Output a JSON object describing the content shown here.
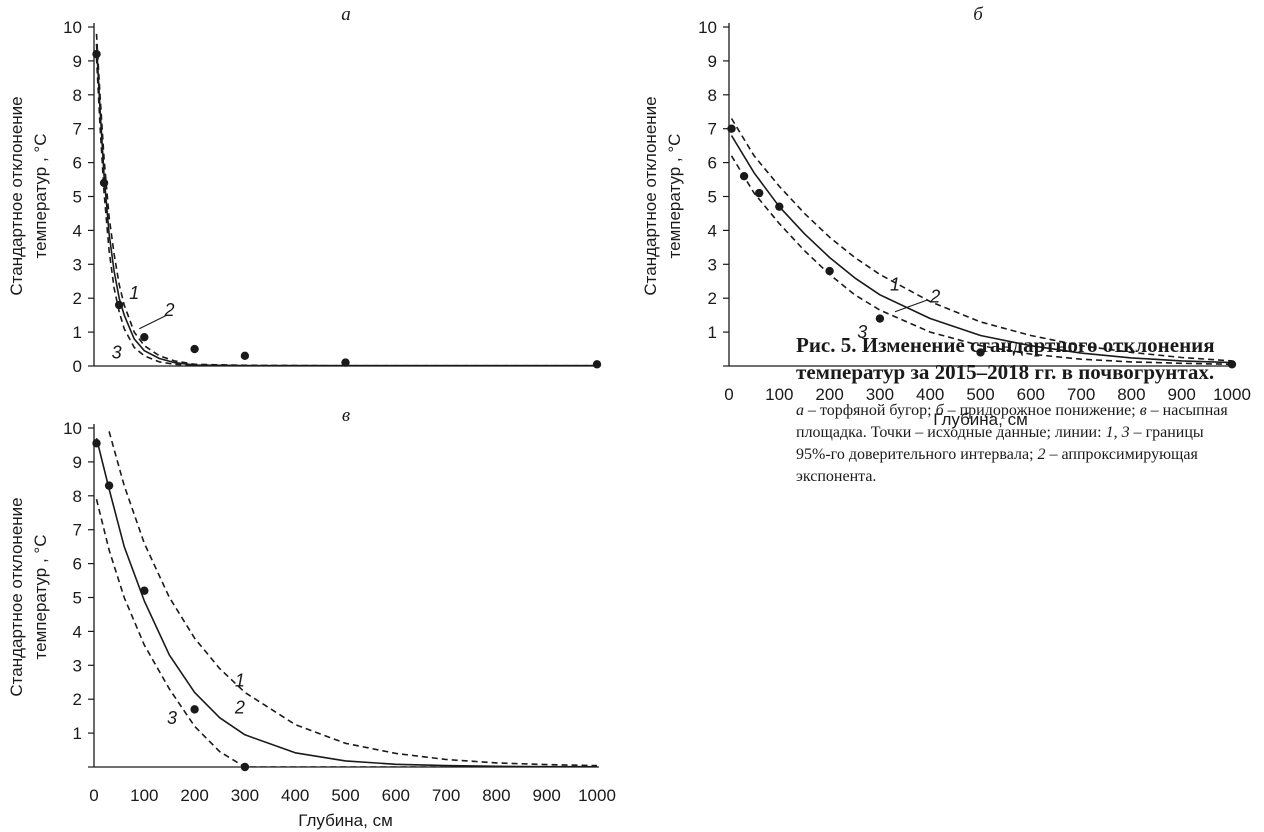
{
  "chart_data": [
    {
      "id": "a",
      "type": "scatter",
      "panel_label": "а",
      "title": "",
      "xlabel": "",
      "ylabel": [
        "Стандартное отклонение",
        "температур , °C"
      ],
      "xlim": [
        0,
        1000
      ],
      "ylim": [
        0,
        10
      ],
      "yticks": [
        "0",
        "1",
        "2",
        "3",
        "4",
        "5",
        "6",
        "7",
        "8",
        "9",
        "10"
      ],
      "xticks": [],
      "points": {
        "x": [
          5,
          20,
          50,
          100,
          200,
          300,
          500,
          1000
        ],
        "y": [
          9.2,
          5.4,
          1.8,
          0.85,
          0.5,
          0.3,
          0.1,
          0.05
        ]
      },
      "curves": [
        {
          "label": "1",
          "style": "dashed",
          "x": [
            5,
            12,
            20,
            30,
            40,
            50,
            60,
            80,
            100,
            130,
            160,
            200,
            300,
            500,
            1000
          ],
          "y": [
            9.8,
            8.0,
            6.1,
            4.4,
            3.3,
            2.4,
            1.8,
            1.0,
            0.6,
            0.3,
            0.15,
            0.05,
            0.02,
            0.01,
            0.01
          ]
        },
        {
          "label": "2",
          "style": "solid",
          "x": [
            5,
            12,
            20,
            30,
            40,
            50,
            60,
            80,
            100,
            130,
            160,
            200,
            300,
            500,
            1000
          ],
          "y": [
            9.5,
            7.6,
            5.6,
            3.9,
            2.8,
            2.0,
            1.5,
            0.8,
            0.45,
            0.22,
            0.1,
            0.03,
            0.01,
            0.01,
            0.01
          ]
        },
        {
          "label": "3",
          "style": "dashed",
          "x": [
            5,
            12,
            20,
            30,
            40,
            50,
            60,
            80,
            100,
            130,
            160,
            200,
            300,
            500,
            1000
          ],
          "y": [
            9.1,
            7.1,
            5.1,
            3.4,
            2.3,
            1.6,
            1.1,
            0.55,
            0.3,
            0.12,
            0.05,
            0.02,
            0.01,
            0.01,
            0.01
          ]
        }
      ],
      "curve_labels": [
        {
          "text": "1",
          "x": 80,
          "y": 2.15
        },
        {
          "text": "2",
          "x": 150,
          "y": 1.65
        },
        {
          "text": "3",
          "x": 45,
          "y": 0.4
        }
      ],
      "curve_pointer": {
        "curve": "2",
        "from": [
          145,
          1.5
        ],
        "to": [
          90,
          1.1
        ]
      }
    },
    {
      "id": "b",
      "type": "scatter",
      "panel_label": "б",
      "title": "",
      "xlabel": "Глубина, см",
      "ylabel": [
        "Стандартное отклонение",
        "температур , °C"
      ],
      "xlim": [
        0,
        1000
      ],
      "ylim": [
        0,
        10
      ],
      "yticks": [
        "",
        "1",
        "2",
        "3",
        "4",
        "5",
        "6",
        "7",
        "8",
        "9",
        "10"
      ],
      "xticks": [
        "0",
        "100",
        "200",
        "300",
        "400",
        "500",
        "600",
        "700",
        "800",
        "900",
        "1000"
      ],
      "points": {
        "x": [
          5,
          30,
          60,
          100,
          200,
          300,
          500,
          1000
        ],
        "y": [
          7.0,
          5.6,
          5.1,
          4.7,
          2.8,
          1.4,
          0.4,
          0.05
        ]
      },
      "curves": [
        {
          "label": "1",
          "style": "dashed",
          "x": [
            5,
            50,
            100,
            150,
            200,
            250,
            300,
            400,
            500,
            600,
            700,
            800,
            900,
            1000
          ],
          "y": [
            7.3,
            6.2,
            5.3,
            4.5,
            3.8,
            3.2,
            2.7,
            1.9,
            1.3,
            0.9,
            0.6,
            0.4,
            0.25,
            0.15
          ]
        },
        {
          "label": "2",
          "style": "solid",
          "x": [
            5,
            50,
            100,
            150,
            200,
            250,
            300,
            400,
            500,
            600,
            700,
            800,
            900,
            1000
          ],
          "y": [
            6.8,
            5.7,
            4.7,
            3.9,
            3.2,
            2.6,
            2.1,
            1.4,
            0.9,
            0.6,
            0.38,
            0.24,
            0.15,
            0.1
          ]
        },
        {
          "label": "3",
          "style": "dashed",
          "x": [
            5,
            50,
            100,
            150,
            200,
            250,
            300,
            400,
            500,
            600,
            700,
            800,
            900,
            1000
          ],
          "y": [
            6.2,
            5.1,
            4.2,
            3.4,
            2.7,
            2.1,
            1.65,
            1.0,
            0.6,
            0.35,
            0.2,
            0.12,
            0.08,
            0.05
          ]
        }
      ],
      "curve_labels": [
        {
          "text": "1",
          "x": 330,
          "y": 2.4
        },
        {
          "text": "2",
          "x": 410,
          "y": 2.05
        },
        {
          "text": "3",
          "x": 265,
          "y": 1.0
        }
      ],
      "curve_pointer": {
        "curve": "2",
        "from": [
          395,
          1.95
        ],
        "to": [
          330,
          1.6
        ]
      }
    },
    {
      "id": "v",
      "type": "scatter",
      "panel_label": "в",
      "title": "",
      "xlabel": "Глубина, см",
      "ylabel": [
        "Стандартное отклонение",
        "температур , °C"
      ],
      "xlim": [
        0,
        1000
      ],
      "ylim": [
        0,
        10
      ],
      "yticks": [
        "",
        "1",
        "2",
        "3",
        "4",
        "5",
        "6",
        "7",
        "8",
        "9",
        "10"
      ],
      "xticks": [
        "0",
        "100",
        "200",
        "300",
        "400",
        "500",
        "600",
        "700",
        "800",
        "900",
        "1000"
      ],
      "points": {
        "x": [
          5,
          30,
          100,
          200,
          300
        ],
        "y": [
          9.55,
          8.3,
          5.2,
          1.7,
          0.0
        ]
      },
      "curves": [
        {
          "label": "1",
          "style": "dashed",
          "x": [
            30,
            60,
            100,
            150,
            200,
            250,
            300,
            400,
            500,
            600,
            700,
            800,
            900,
            1000
          ],
          "y": [
            9.9,
            8.3,
            6.6,
            5.0,
            3.8,
            2.9,
            2.2,
            1.25,
            0.7,
            0.4,
            0.22,
            0.12,
            0.07,
            0.04
          ]
        },
        {
          "label": "2",
          "style": "solid",
          "x": [
            5,
            30,
            60,
            100,
            150,
            200,
            250,
            300,
            400,
            500,
            600,
            700,
            800,
            900,
            1000
          ],
          "y": [
            9.7,
            8.2,
            6.5,
            4.9,
            3.3,
            2.2,
            1.45,
            0.95,
            0.42,
            0.18,
            0.08,
            0.04,
            0.02,
            0.01,
            0.01
          ]
        },
        {
          "label": "3",
          "style": "dashed",
          "x": [
            5,
            30,
            60,
            100,
            150,
            200,
            250,
            300,
            400,
            500,
            1000
          ],
          "y": [
            7.9,
            6.4,
            5.0,
            3.6,
            2.3,
            1.2,
            0.45,
            0.0,
            0.0,
            0.0,
            0.0
          ]
        }
      ],
      "curve_labels": [
        {
          "text": "1",
          "x": 290,
          "y": 2.55
        },
        {
          "text": "2",
          "x": 290,
          "y": 1.75
        },
        {
          "text": "3",
          "x": 155,
          "y": 1.45
        }
      ],
      "curve_pointer": null
    }
  ],
  "caption": {
    "title": "Рис. 5. Изменение стандартного отклонения температур за 2015–2018 гг. в почвогрунтах.",
    "parts": [
      {
        "text": "а",
        "italic": true
      },
      {
        "text": " – торфяной бугор; ",
        "italic": false
      },
      {
        "text": "б",
        "italic": true
      },
      {
        "text": " – придорожное понижение; ",
        "italic": false
      },
      {
        "text": "в",
        "italic": true
      },
      {
        "text": " – насыпная площадка. Точки – исходные данные; линии: ",
        "italic": false
      },
      {
        "text": "1",
        "italic": true
      },
      {
        "text": ", ",
        "italic": false
      },
      {
        "text": "3",
        "italic": true
      },
      {
        "text": " – границы 95%-го доверительного интервала; ",
        "italic": false
      },
      {
        "text": "2",
        "italic": true
      },
      {
        "text": " – аппроксимирующая экспонента.",
        "italic": false
      }
    ]
  }
}
